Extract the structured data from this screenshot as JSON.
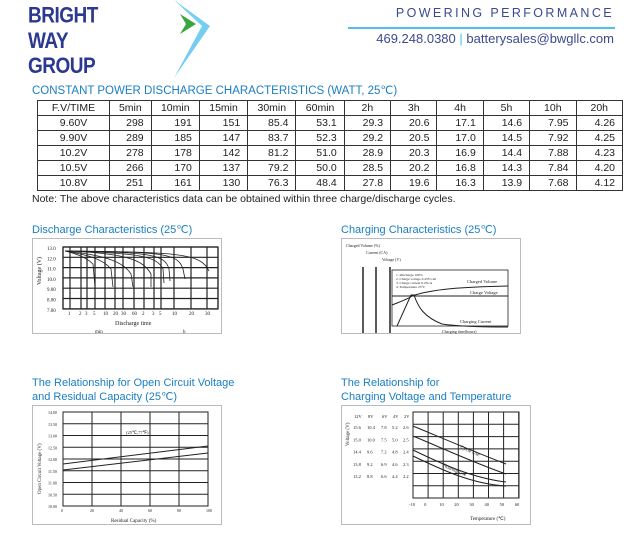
{
  "header": {
    "logo": "BRIGHT WAY GROUP",
    "tagline": "POWERING PERFORMANCE",
    "phone": "469.248.0380",
    "separator": "|",
    "email": "batterysales@bwgllc.com"
  },
  "table": {
    "title": "CONSTANT POWER DISCHARGE CHARACTERISTICS (WATT, 25℃)",
    "columns": [
      "F.V/TIME",
      "5min",
      "10min",
      "15min",
      "30min",
      "60min",
      "2h",
      "3h",
      "4h",
      "5h",
      "10h",
      "20h"
    ],
    "rows": [
      [
        "9.60V",
        "298",
        "191",
        "151",
        "85.4",
        "53.1",
        "29.3",
        "20.6",
        "17.1",
        "14.6",
        "7.95",
        "4.26"
      ],
      [
        "9.90V",
        "289",
        "185",
        "147",
        "83.7",
        "52.3",
        "29.2",
        "20.5",
        "17.0",
        "14.5",
        "7.92",
        "4.25"
      ],
      [
        "10.2V",
        "278",
        "178",
        "142",
        "81.2",
        "51.0",
        "28.9",
        "20.3",
        "16.9",
        "14.4",
        "7.88",
        "4.23"
      ],
      [
        "10.5V",
        "266",
        "170",
        "137",
        "79.2",
        "50.0",
        "28.5",
        "20.2",
        "16.8",
        "14.3",
        "7.84",
        "4.20"
      ],
      [
        "10.8V",
        "251",
        "161",
        "130",
        "76.3",
        "48.4",
        "27.8",
        "19.6",
        "16.3",
        "13.9",
        "7.68",
        "4.12"
      ]
    ],
    "note": "Note: The above characteristics data can be obtained within three charge/discharge cycles."
  },
  "charts": {
    "discharge": {
      "title": "Discharge Characteristics (25℃)",
      "ylabel": "Voltage (V)",
      "yticks": [
        "13.0",
        "12.0",
        "11.0",
        "10.0",
        "9.00",
        "8.00",
        "7.00"
      ],
      "xticks": [
        "1",
        "2",
        "3",
        "5",
        "10",
        "20",
        "30",
        "60",
        "2",
        "3",
        "5",
        "10",
        "20",
        "30"
      ],
      "xunit_min": "min",
      "xunit_h": "h",
      "xlabel": "Discharge time"
    },
    "charging": {
      "title": "Charging Characteristics (25℃)",
      "axis1": "Charged Volume (%)",
      "axis2": "Current (CA)",
      "axis3": "Voltage (V)",
      "notes": [
        "1. Discharge 100%",
        "2. Charge voltage 2.45V/cell",
        "3. Charge current 0.25CA",
        "4. Temperature 25°C"
      ],
      "series": [
        "Charged Volume",
        "Charge Voltage",
        "Charging Current"
      ],
      "xlabel": "Charging time(hours)"
    },
    "ocv": {
      "title_line1": "The Relationship for Open Circuit Voltage",
      "title_line2": "and Residual Capacity (25℃)",
      "ylabel": "Open Circuit Voltage (V)",
      "xlabel": "Residual Capacity (%)",
      "annotation": "(25℃,77℉)",
      "yticks": [
        "14.00",
        "13.50",
        "13.00",
        "12.50",
        "12.00",
        "11.50",
        "11.00",
        "10.50",
        "10.00"
      ],
      "xticks": [
        "0",
        "20",
        "40",
        "60",
        "80",
        "100"
      ]
    },
    "temperature": {
      "title_line1": "The Relationship for",
      "title_line2": "Charging Voltage and Temperature",
      "ylabel": "Voltage (V)",
      "headers": [
        "12V",
        "8V",
        "6V",
        "4V",
        "2V"
      ],
      "rows": [
        [
          "15.6",
          "10.4",
          "7.8",
          "5.2",
          "2.6"
        ],
        [
          "15.0",
          "10.0",
          "7.5",
          "5.0",
          "2.5"
        ],
        [
          "14.4",
          "9.6",
          "7.2",
          "4.8",
          "2.4"
        ],
        [
          "13.8",
          "9.2",
          "6.9",
          "4.6",
          "2.3"
        ],
        [
          "13.2",
          "8.8",
          "6.6",
          "4.4",
          "2.2"
        ]
      ],
      "xticks": [
        "-10",
        "0",
        "10",
        "20",
        "30",
        "40",
        "50",
        "60"
      ],
      "xlabel": "Temperature (℃)",
      "series": [
        "Cycle Use",
        "Floating Use"
      ]
    }
  },
  "colors": {
    "brand": "#2b3990",
    "accent": "#4fc0ea",
    "title": "#1a7ec2"
  }
}
